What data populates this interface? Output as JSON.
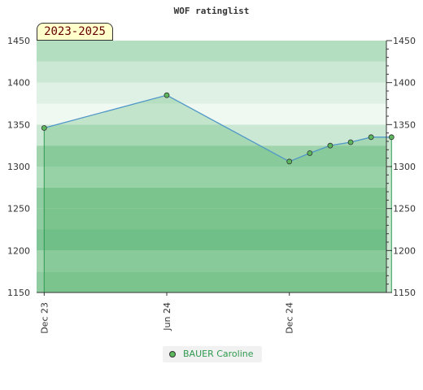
{
  "chart_data": {
    "type": "line",
    "title": "WOF ratinglist",
    "period_label": "2023-2025",
    "x_tick_labels": [
      "Dec 23",
      "Jun 24",
      "Dec 24"
    ],
    "x_tick_months": [
      0,
      6,
      12
    ],
    "y_ticks": [
      1150,
      1200,
      1250,
      1300,
      1350,
      1400,
      1450
    ],
    "ylim": [
      1150,
      1450
    ],
    "xlim_months": [
      -0.37,
      16.75
    ],
    "series": [
      {
        "name": "BAUER Caroline",
        "color": "#5cb85c",
        "line_color": "#4f97c9",
        "points": [
          {
            "month": 0,
            "rating": 1346
          },
          {
            "month": 6,
            "rating": 1385
          },
          {
            "month": 12,
            "rating": 1306
          },
          {
            "month": 13,
            "rating": 1316
          },
          {
            "month": 14,
            "rating": 1325
          },
          {
            "month": 15,
            "rating": 1329
          },
          {
            "month": 16,
            "rating": 1335
          },
          {
            "month": 17,
            "rating": 1335
          }
        ]
      }
    ],
    "legend_position": "bottom",
    "grid": true
  }
}
